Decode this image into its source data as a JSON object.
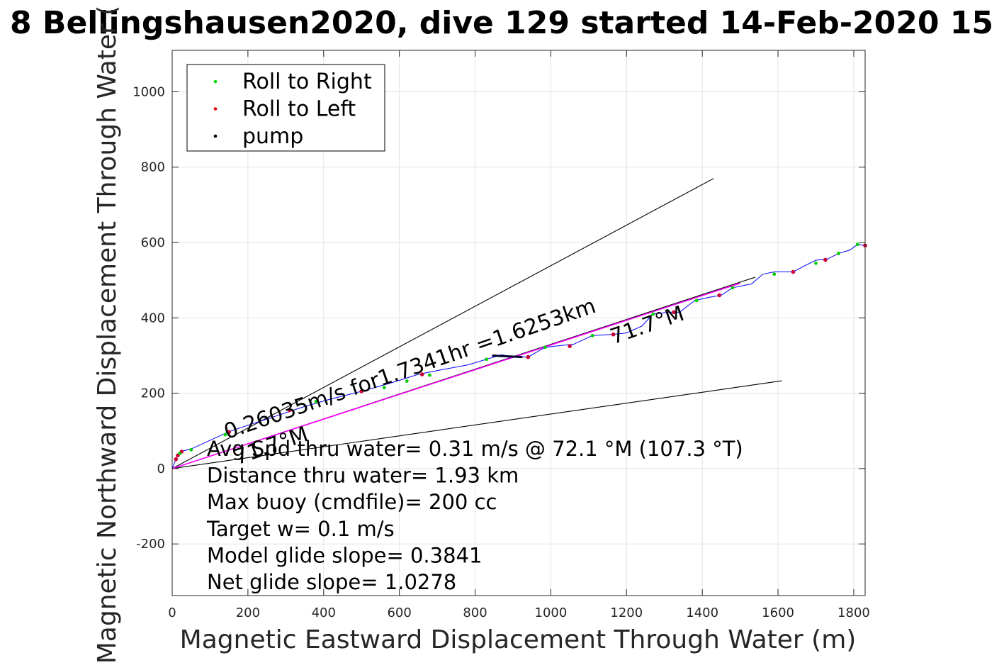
{
  "chart_data": {
    "type": "scatter",
    "title": "8 Bellingshausen2020, dive 129 started 14-Feb-2020 15",
    "xlabel": "Magnetic Eastward Displacement Through Water (m)",
    "ylabel": "Magnetic Northward Displacement Through Water (",
    "xlim": [
      0,
      1830
    ],
    "ylim": [
      -337,
      1110
    ],
    "xticks": [
      0,
      200,
      400,
      600,
      800,
      1000,
      1200,
      1400,
      1600,
      1800
    ],
    "yticks": [
      -200,
      0,
      200,
      400,
      600,
      800,
      1000
    ],
    "grid": true,
    "legend_position": "top-left",
    "legend": [
      {
        "label": "Roll to Right",
        "color": "#00e000"
      },
      {
        "label": "Roll to Left",
        "color": "#e00000"
      },
      {
        "label": "pump",
        "color": "#000000"
      }
    ],
    "series": [
      {
        "name": "track",
        "color": "#0000ff",
        "x": [
          0,
          8,
          15,
          25,
          50,
          100,
          150,
          200,
          270,
          350,
          420,
          500,
          580,
          650,
          710,
          780,
          830,
          870,
          900,
          940,
          985,
          1030,
          1060,
          1110,
          1160,
          1200,
          1240,
          1270,
          1310,
          1340,
          1380,
          1420,
          1450,
          1480,
          1530,
          1560,
          1590,
          1640,
          1670,
          1700,
          1730,
          1760,
          1790,
          1810,
          1830
        ],
        "y": [
          0,
          20,
          38,
          46,
          52,
          75,
          98,
          115,
          138,
          165,
          185,
          205,
          228,
          250,
          262,
          275,
          290,
          302,
          297,
          296,
          322,
          327,
          330,
          353,
          356,
          360,
          378,
          410,
          415,
          415,
          446,
          455,
          460,
          480,
          490,
          516,
          522,
          522,
          538,
          553,
          556,
          571,
          580,
          595,
          592
        ]
      }
    ],
    "roll_right_points": {
      "x": [
        20,
        50,
        140,
        380,
        560,
        620,
        680,
        830,
        985,
        1110,
        1270,
        1385,
        1480,
        1590,
        1700,
        1760,
        1810
      ],
      "y": [
        40,
        50,
        90,
        178,
        215,
        232,
        248,
        290,
        322,
        353,
        410,
        446,
        480,
        516,
        545,
        571,
        595
      ]
    },
    "roll_left_points": {
      "x": [
        10,
        15,
        25,
        150,
        310,
        500,
        660,
        940,
        1050,
        1165,
        1325,
        1445,
        1640,
        1725,
        1830
      ],
      "y": [
        25,
        35,
        45,
        97,
        155,
        205,
        250,
        296,
        325,
        356,
        415,
        460,
        522,
        554,
        592
      ]
    },
    "lines": [
      {
        "name": "upper-bound",
        "color": "#000000",
        "x": [
          0,
          1430
        ],
        "y": [
          0,
          770
        ]
      },
      {
        "name": "lower-bound",
        "color": "#000000",
        "x": [
          0,
          1610
        ],
        "y": [
          0,
          233
        ]
      },
      {
        "name": "heading-line",
        "color": "#000000",
        "x": [
          0,
          1540
        ],
        "y": [
          0,
          508
        ]
      },
      {
        "name": "avg-line",
        "color": "#ff00ff",
        "x": [
          0,
          1500
        ],
        "y": [
          0,
          492
        ]
      }
    ],
    "annotations": {
      "rotated_speed": "0.26035m/s for1.7341hr =1.6253km",
      "heading_near": "71.7°M",
      "heading_far": "71.7°M"
    },
    "info_lines": [
      "Avg Spd thru water=  0.31 m/s @  72.1 °M (107.3 °T)",
      "Distance thru water=  1.93 km",
      "Max buoy (cmdfile)= 200 cc",
      "Target w= 0.1 m/s",
      "Model glide slope= 0.3841",
      "Net glide slope= 1.0278"
    ]
  }
}
